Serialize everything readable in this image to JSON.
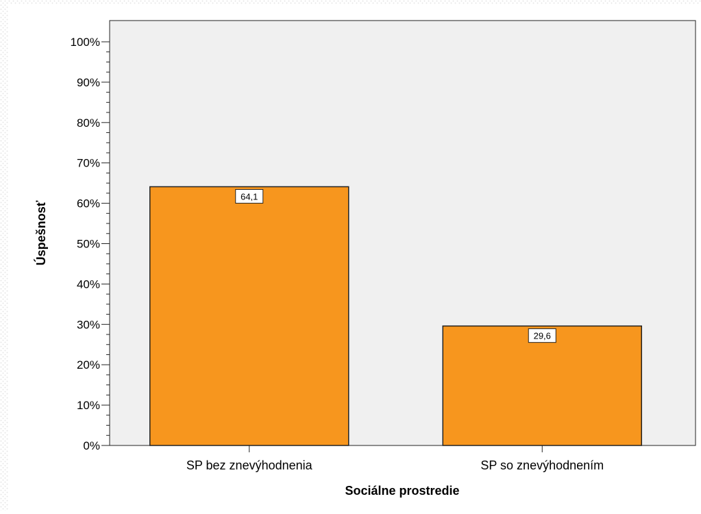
{
  "chart_data": {
    "type": "bar",
    "categories": [
      "SP bez znevýhodnenia",
      "SP so znevýhodnením"
    ],
    "values": [
      64.1,
      29.6
    ],
    "value_labels": [
      "64,1",
      "29,6"
    ],
    "title": "",
    "xlabel": "Sociálne prostredie",
    "ylabel": "Úspešnosť",
    "ylim": [
      0,
      100
    ],
    "y_ticks": [
      0,
      10,
      20,
      30,
      40,
      50,
      60,
      70,
      80,
      90,
      100
    ],
    "y_tick_labels": [
      "0%",
      "10%",
      "20%",
      "30%",
      "40%",
      "50%",
      "60%",
      "70%",
      "80%",
      "90%",
      "100%"
    ],
    "grid": false,
    "legend": "none"
  },
  "colors": {
    "bar_fill": "#f7961e",
    "bar_stroke": "#222222",
    "plot_background": "#f0f0f0",
    "border_pattern": "#e6e6e6"
  }
}
